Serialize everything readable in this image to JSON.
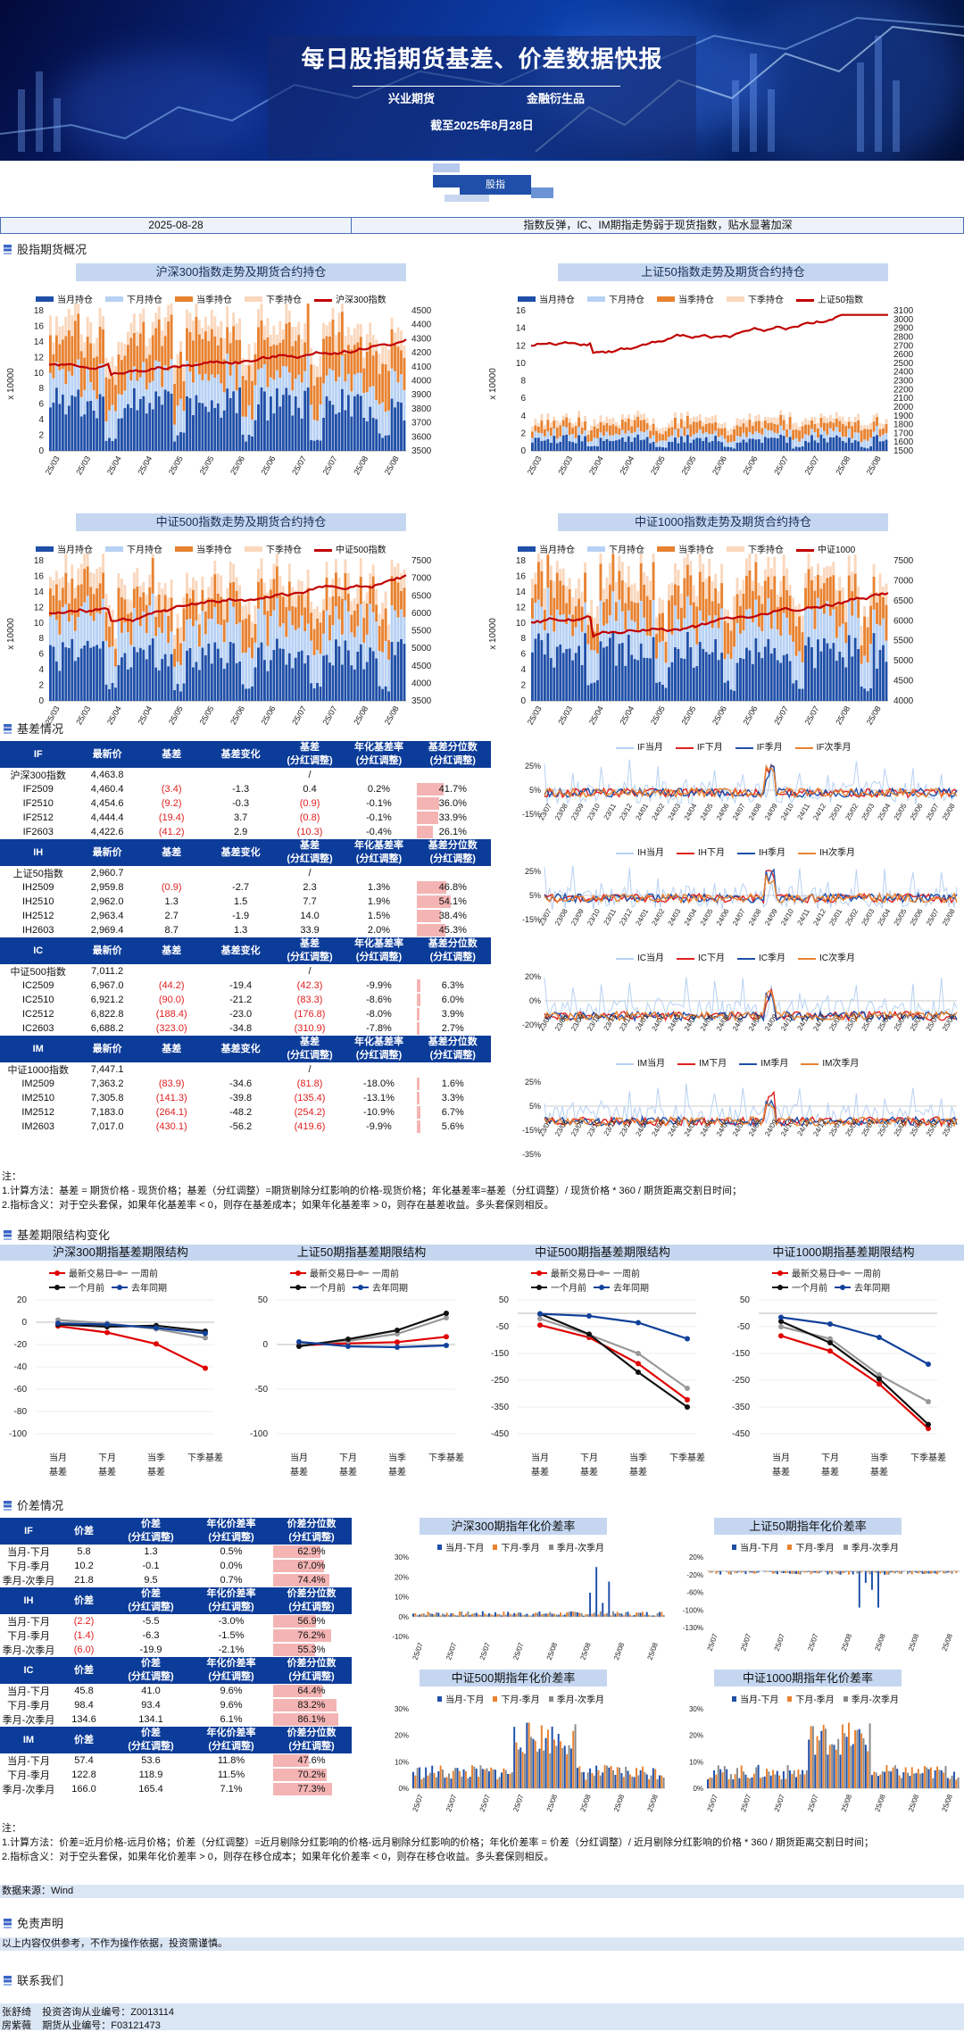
{
  "colors": {
    "navy": "#1f4fa8",
    "light": "#b7d1f4",
    "orange": "#e88230",
    "peach": "#fad7bd",
    "red": "#c00000"
  },
  "banner": {
    "title": "每日股指期货基差、价差数据快报",
    "co1": "兴业期货",
    "co2": "金融衍生品",
    "date": "截至2025年8月28日",
    "tag": "股指"
  },
  "datebar": {
    "date": "2025-08-28",
    "summary": "指数反弹，IC、IM期指走势弱于现货指数，贴水显著加深"
  },
  "sections": {
    "s1": "股指期货概况",
    "s2": "基差情况",
    "s3": "基差期限结构变化",
    "s4": "价差情况",
    "s5": "免责声明",
    "s6": "联系我们"
  },
  "overview": {
    "legend": [
      "当月持仓",
      "下月持仓",
      "当季持仓",
      "下季持仓"
    ],
    "ylabel": "x 10000",
    "xticks": [
      "25/03",
      "25/03",
      "25/04",
      "25/04",
      "25/05",
      "25/05",
      "25/06",
      "25/06",
      "25/07",
      "25/07",
      "25/08",
      "25/08"
    ],
    "charts": [
      {
        "title": "沪深300指数走势及期货合约持仓",
        "idx": "沪深300指数",
        "left": [
          0,
          2,
          4,
          6,
          8,
          10,
          12,
          14,
          16,
          18
        ],
        "right": [
          3500,
          3600,
          3700,
          3800,
          3900,
          4000,
          4100,
          4200,
          4300,
          4400,
          4500
        ]
      },
      {
        "title": "上证50指数走势及期货合约持仓",
        "idx": "上证50指数",
        "left": [
          0,
          2,
          4,
          6,
          8,
          10,
          12,
          14,
          16
        ],
        "right": [
          1500,
          1600,
          1700,
          1800,
          1900,
          2000,
          2100,
          2200,
          2300,
          2400,
          2500,
          2600,
          2700,
          2800,
          2900,
          3000,
          3100
        ]
      },
      {
        "title": "中证500指数走势及期货合约持仓",
        "idx": "中证500指数",
        "left": [
          0,
          2,
          4,
          6,
          8,
          10,
          12,
          14,
          16,
          18
        ],
        "right": [
          3500,
          4000,
          4500,
          5000,
          5500,
          6000,
          6500,
          7000,
          7500
        ]
      },
      {
        "title": "中证1000指数走势及期货合约持仓",
        "idx": "中证1000",
        "left": [
          0,
          2,
          4,
          6,
          8,
          10,
          12,
          14,
          16,
          18
        ],
        "right": [
          4000,
          4500,
          5000,
          5500,
          6000,
          6500,
          7000,
          7500
        ]
      }
    ]
  },
  "basis": {
    "headers": [
      "最新价",
      "基差",
      "基差变化",
      "基差\n(分红调整)",
      "年化基差率\n(分红调整)",
      "基差分位数\n(分红调整)"
    ],
    "groups": [
      {
        "code": "IF",
        "index_name": "沪深300指数",
        "index_price": "4,463.8",
        "index_slash": "/",
        "rows": [
          [
            "IF2509",
            "4,460.4",
            "(3.4)",
            "-1.3",
            "0.4",
            "0.2%",
            "41.7%"
          ],
          [
            "IF2510",
            "4,454.6",
            "(9.2)",
            "-0.3",
            "(0.9)",
            "-0.1%",
            "36.0%"
          ],
          [
            "IF2512",
            "4,444.4",
            "(19.4)",
            "3.7",
            "(0.8)",
            "-0.1%",
            "33.9%"
          ],
          [
            "IF2603",
            "4,422.6",
            "(41.2)",
            "2.9",
            "(10.3)",
            "-0.4%",
            "26.1%"
          ]
        ]
      },
      {
        "code": "IH",
        "index_name": "上证50指数",
        "index_price": "2,960.7",
        "index_slash": "/",
        "rows": [
          [
            "IH2509",
            "2,959.8",
            "(0.9)",
            "-2.7",
            "2.3",
            "1.3%",
            "46.8%"
          ],
          [
            "IH2510",
            "2,962.0",
            "1.3",
            "1.5",
            "7.7",
            "1.9%",
            "54.1%"
          ],
          [
            "IH2512",
            "2,963.4",
            "2.7",
            "-1.9",
            "14.0",
            "1.5%",
            "38.4%"
          ],
          [
            "IH2603",
            "2,969.4",
            "8.7",
            "1.3",
            "33.9",
            "2.0%",
            "45.3%"
          ]
        ]
      },
      {
        "code": "IC",
        "index_name": "中证500指数",
        "index_price": "7,011.2",
        "index_slash": "/",
        "rows": [
          [
            "IC2509",
            "6,967.0",
            "(44.2)",
            "-19.4",
            "(42.3)",
            "-9.9%",
            "6.3%"
          ],
          [
            "IC2510",
            "6,921.2",
            "(90.0)",
            "-21.2",
            "(83.3)",
            "-8.6%",
            "6.0%"
          ],
          [
            "IC2512",
            "6,822.8",
            "(188.4)",
            "-23.0",
            "(176.8)",
            "-8.0%",
            "3.9%"
          ],
          [
            "IC2603",
            "6,688.2",
            "(323.0)",
            "-34.8",
            "(310.9)",
            "-7.8%",
            "2.7%"
          ]
        ]
      },
      {
        "code": "IM",
        "index_name": "中证1000指数",
        "index_price": "7,447.1",
        "index_slash": "/",
        "rows": [
          [
            "IM2509",
            "7,363.2",
            "(83.9)",
            "-34.6",
            "(81.8)",
            "-18.0%",
            "1.6%"
          ],
          [
            "IM2510",
            "7,305.8",
            "(141.3)",
            "-39.8",
            "(135.4)",
            "-13.1%",
            "3.3%"
          ],
          [
            "IM2512",
            "7,183.0",
            "(264.1)",
            "-48.2",
            "(254.2)",
            "-10.9%",
            "6.7%"
          ],
          [
            "IM2603",
            "7,017.0",
            "(430.1)",
            "-56.2",
            "(419.6)",
            "-9.9%",
            "5.6%"
          ]
        ]
      }
    ],
    "mini": [
      {
        "legend": [
          "IF当月",
          "IF下月",
          "IF季月",
          "IF次季月"
        ],
        "yt": [
          "25%",
          "5%",
          "-15%"
        ]
      },
      {
        "legend": [
          "IH当月",
          "IH下月",
          "IH季月",
          "IH次季月"
        ],
        "yt": [
          "25%",
          "5%",
          "-15%"
        ]
      },
      {
        "legend": [
          "IC当月",
          "IC下月",
          "IC季月",
          "IC次季月"
        ],
        "yt": [
          "20%",
          "0%",
          "-20%"
        ]
      },
      {
        "legend": [
          "IM当月",
          "IM下月",
          "IM季月",
          "IM次季月"
        ],
        "yt": [
          "25%",
          "5%",
          "-15%",
          "-35%"
        ]
      }
    ],
    "mini_x": [
      "23/07",
      "23/08",
      "23/09",
      "23/10",
      "23/11",
      "23/12",
      "24/01",
      "24/02",
      "24/03",
      "24/04",
      "24/05",
      "24/06",
      "24/07",
      "24/08",
      "24/09",
      "24/10",
      "24/11",
      "24/12",
      "25/01",
      "25/02",
      "25/03",
      "25/04",
      "25/05",
      "25/06",
      "25/07",
      "25/08"
    ],
    "note_title": "注：",
    "note1": "1.计算方法：基差 = 期货价格 - 现货价格；基差（分红调整）=期货剔除分红影响的价格-现货价格；年化基差率=基差（分红调整）/ 现货价格 * 360 / 期货距离交割日时间；",
    "note2": "2.指标含义：对于空头套保，如果年化基差率 < 0，则存在基差成本；如果年化基差率 > 0，则存在基差收益。多头套保则相反。"
  },
  "term": {
    "legend": [
      "最新交易日",
      "一周前",
      "一个月前",
      "去年同期"
    ],
    "xcats": [
      "当月\n基差",
      "下月\n基差",
      "当季\n基差",
      "下季基差"
    ],
    "charts": [
      {
        "title": "沪深300期指基差期限结构",
        "yt": [
          "20",
          "0",
          "-20",
          "-40",
          "-60",
          "-80",
          "-100"
        ],
        "ymin": -100,
        "ymax": 20,
        "series": [
          [
            -3.4,
            -9.2,
            -19.4,
            -41.2
          ],
          [
            2,
            -1,
            -6,
            -14
          ],
          [
            -2,
            -4,
            -3,
            -8
          ],
          [
            -1,
            -2,
            -5,
            -10
          ]
        ]
      },
      {
        "title": "上证50期指基差期限结构",
        "yt": [
          "50",
          "0",
          "-50",
          "-100"
        ],
        "ymin": -100,
        "ymax": 50,
        "series": [
          [
            -0.9,
            1.3,
            2.7,
            8.7
          ],
          [
            0,
            4,
            12,
            30
          ],
          [
            -2,
            6,
            16,
            35
          ],
          [
            3,
            -2,
            -3,
            -1
          ]
        ]
      },
      {
        "title": "中证500期指基差期限结构",
        "yt": [
          "50",
          "-50",
          "-150",
          "-250",
          "-350",
          "-450"
        ],
        "ymin": -450,
        "ymax": 50,
        "series": [
          [
            -44,
            -90,
            -188,
            -323
          ],
          [
            -20,
            -80,
            -150,
            -280
          ],
          [
            -2,
            -78,
            -220,
            -350
          ],
          [
            -2,
            -10,
            -35,
            -95
          ]
        ]
      },
      {
        "title": "中证1000期指基差期限结构",
        "yt": [
          "50",
          "-50",
          "-150",
          "-250",
          "-350",
          "-450"
        ],
        "ymin": -450,
        "ymax": 50,
        "series": [
          [
            -84,
            -141,
            -264,
            -430
          ],
          [
            -50,
            -95,
            -230,
            -330
          ],
          [
            -30,
            -110,
            -245,
            -415
          ],
          [
            -15,
            -40,
            -90,
            -190
          ]
        ]
      }
    ]
  },
  "spread": {
    "headers": [
      "价差",
      "价差\n(分红调整)",
      "年化价差率\n(分红调整)",
      "价差分位数\n(分红调整)"
    ],
    "groups": [
      {
        "code": "IF",
        "rows": [
          [
            "当月-下月",
            "5.8",
            "1.3",
            "0.5%",
            "62.9%"
          ],
          [
            "下月-季月",
            "10.2",
            "-0.1",
            "0.0%",
            "67.0%"
          ],
          [
            "季月-次季月",
            "21.8",
            "9.5",
            "0.7%",
            "74.4%"
          ]
        ]
      },
      {
        "code": "IH",
        "rows": [
          [
            "当月-下月",
            "(2.2)",
            "-5.5",
            "-3.0%",
            "56.9%"
          ],
          [
            "下月-季月",
            "(1.4)",
            "-6.3",
            "-1.5%",
            "76.2%"
          ],
          [
            "季月-次季月",
            "(6.0)",
            "-19.9",
            "-2.1%",
            "55.3%"
          ]
        ]
      },
      {
        "code": "IC",
        "rows": [
          [
            "当月-下月",
            "45.8",
            "41.0",
            "9.6%",
            "64.4%"
          ],
          [
            "下月-季月",
            "98.4",
            "93.4",
            "9.6%",
            "83.2%"
          ],
          [
            "季月-次季月",
            "134.6",
            "134.1",
            "6.1%",
            "86.1%"
          ]
        ]
      },
      {
        "code": "IM",
        "rows": [
          [
            "当月-下月",
            "57.4",
            "53.6",
            "11.8%",
            "47.6%"
          ],
          [
            "下月-季月",
            "122.8",
            "118.9",
            "11.5%",
            "70.2%"
          ],
          [
            "季月-次季月",
            "166.0",
            "165.4",
            "7.1%",
            "77.3%"
          ]
        ]
      }
    ],
    "charts": [
      {
        "title": "沪深300期指年化价差率",
        "yt": [
          "30%",
          "20%",
          "10%",
          "0%",
          "-10%"
        ]
      },
      {
        "title": "上证50期指年化价差率",
        "yt": [
          "20%",
          "-20%",
          "-60%",
          "-100%",
          "-130%"
        ]
      },
      {
        "title": "中证500期指年化价差率",
        "yt": [
          "30%",
          "20%",
          "10%",
          "0%"
        ]
      },
      {
        "title": "中证1000期指年化价差率",
        "yt": [
          "30%",
          "20%",
          "10%",
          "0%"
        ]
      }
    ],
    "legend": [
      "当月-下月",
      "下月-季月",
      "季月-次季月"
    ],
    "xt": [
      "25/07",
      "25/07",
      "25/07",
      "25/07",
      "25/08",
      "25/08",
      "25/08",
      "25/08"
    ],
    "note_title": "注：",
    "note1": "1.计算方法：价差=近月价格-远月价格；价差（分红调整）=近月剔除分红影响的价格-远月剔除分红影响的价格；年化价差率 = 价差（分红调整）/ 近月剔除分红影响的价格 * 360 / 期货距离交割日时间；",
    "note2": "2.指标含义：对于空头套保，如果年化价差率 > 0，则存在移仓成本；如果年化价差率 < 0，则存在移仓收益。多头套保则相反。"
  },
  "source": "数据来源：Wind",
  "disclaimer": "以上内容仅供参考，不作为操作依据，投资需谨慎。",
  "contacts": [
    {
      "name": "张舒绮",
      "role": "投资咨询从业编号：Z0013114"
    },
    {
      "name": "房紫薇",
      "role": "期货从业编号：F03121473"
    }
  ]
}
